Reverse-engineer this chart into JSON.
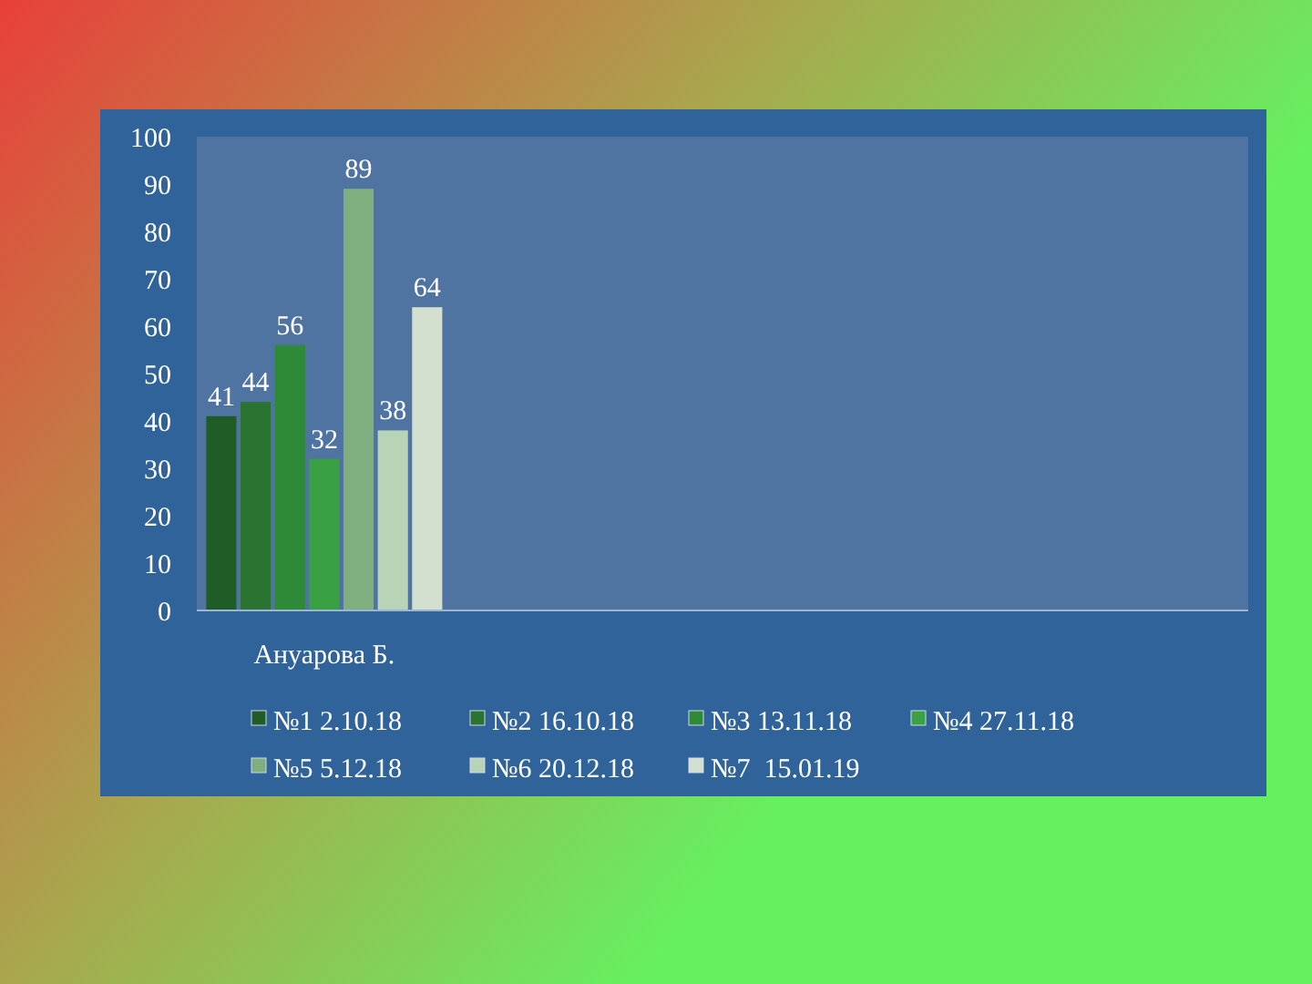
{
  "chart_data": {
    "type": "bar",
    "categories": [
      "Ануарова Б.",
      null,
      null,
      null
    ],
    "series": [
      {
        "name": "№1 2.10.18",
        "color": "#1f5c26",
        "values": [
          41,
          null,
          null,
          null
        ]
      },
      {
        "name": "№2 16.10.18",
        "color": "#2a7330",
        "values": [
          44,
          null,
          null,
          null
        ]
      },
      {
        "name": "№3 13.11.18",
        "color": "#2f8a37",
        "values": [
          56,
          null,
          null,
          null
        ]
      },
      {
        "name": "№4 27.11.18",
        "color": "#3aa044",
        "values": [
          32,
          null,
          null,
          null
        ]
      },
      {
        "name": "№5 5.12.18",
        "color": "#7fae7f",
        "values": [
          89,
          null,
          null,
          null
        ]
      },
      {
        "name": "№6 20.12.18",
        "color": "#b8d3b5",
        "values": [
          38,
          null,
          null,
          null
        ]
      },
      {
        "name": "№7  15.01.19",
        "color": "#d4e0cf",
        "values": [
          64,
          null,
          null,
          null
        ]
      }
    ],
    "ylim": [
      0,
      100
    ],
    "yticks": [
      0,
      10,
      20,
      30,
      40,
      50,
      60,
      70,
      80,
      90,
      100
    ],
    "grid": false,
    "legend": "bottom",
    "data_labels": true
  }
}
